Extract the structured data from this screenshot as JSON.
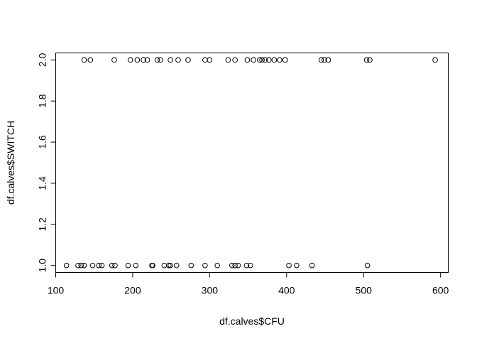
{
  "chart_data": {
    "type": "scatter",
    "title": "",
    "xlabel": "df.calves$CFU",
    "ylabel": "df.calves$SWITCH",
    "xlim": [
      100,
      610
    ],
    "ylim": [
      0.966,
      2.034
    ],
    "x_ticks": [
      100,
      200,
      300,
      400,
      500,
      600
    ],
    "x_tick_labels": [
      "100",
      "200",
      "300",
      "400",
      "500",
      "600"
    ],
    "y_ticks": [
      1.0,
      1.2,
      1.4,
      1.6,
      1.8,
      2.0
    ],
    "y_tick_labels": [
      "1.0",
      "1.2",
      "1.4",
      "1.6",
      "1.8",
      "2.0"
    ],
    "grid": false,
    "legend": "none",
    "series": [
      {
        "values_x": [
          137,
          145,
          176,
          197,
          206,
          214,
          219,
          232,
          236,
          249,
          259,
          272,
          294,
          300,
          324,
          333,
          349,
          357,
          365,
          368,
          372,
          377,
          384,
          391,
          398,
          445,
          449,
          454,
          504,
          508,
          593
        ],
        "values_y": [
          2,
          2,
          2,
          2,
          2,
          2,
          2,
          2,
          2,
          2,
          2,
          2,
          2,
          2,
          2,
          2,
          2,
          2,
          2,
          2,
          2,
          2,
          2,
          2,
          2,
          2,
          2,
          2,
          2,
          2,
          2
        ]
      },
      {
        "values_x": [
          114,
          129,
          133,
          137,
          148,
          156,
          160,
          173,
          177,
          194,
          204,
          225,
          226,
          241,
          247,
          249,
          257,
          276,
          294,
          310,
          329,
          333,
          337,
          348,
          353,
          403,
          413,
          433,
          505
        ],
        "values_y": [
          1,
          1,
          1,
          1,
          1,
          1,
          1,
          1,
          1,
          1,
          1,
          1,
          1,
          1,
          1,
          1,
          1,
          1,
          1,
          1,
          1,
          1,
          1,
          1,
          1,
          1,
          1,
          1,
          1
        ]
      }
    ]
  }
}
